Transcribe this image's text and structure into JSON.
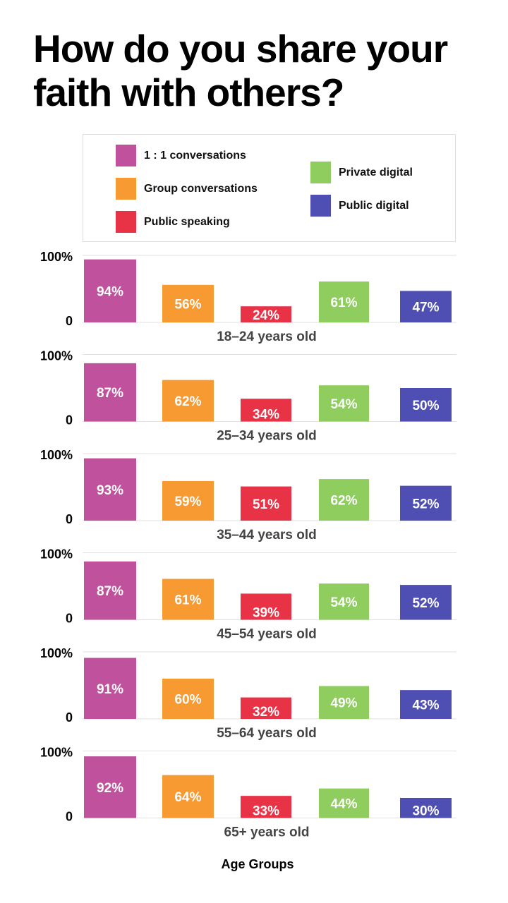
{
  "chart_data": {
    "type": "bar",
    "title": "How do you share your faith with others?",
    "xlabel": "Age Groups",
    "ylabel": "",
    "ylim": [
      0,
      100
    ],
    "y_tick_labels": [
      "0",
      "100%"
    ],
    "grid": true,
    "legend_position": "top",
    "series_names": [
      "1:1 conversations",
      "Group conversations",
      "Public speaking",
      "Private digital",
      "Public digital"
    ],
    "series_colors": [
      "#c0519c",
      "#f79a31",
      "#e83347",
      "#8fcd5f",
      "#4f4fb3"
    ],
    "panels": [
      {
        "group": "18–24 years old",
        "values": [
          94,
          56,
          24,
          61,
          47
        ],
        "labels": [
          "94%",
          "56%",
          "24%",
          "61%",
          "47%"
        ]
      },
      {
        "group": "25–34 years old",
        "values": [
          87,
          62,
          34,
          54,
          50
        ],
        "labels": [
          "87%",
          "62%",
          "34%",
          "54%",
          "50%"
        ]
      },
      {
        "group": "35–44 years old",
        "values": [
          93,
          59,
          51,
          62,
          52
        ],
        "labels": [
          "93%",
          "59%",
          "51%",
          "62%",
          "52%"
        ]
      },
      {
        "group": "45–54 years old",
        "values": [
          87,
          61,
          39,
          54,
          52
        ],
        "labels": [
          "87%",
          "61%",
          "39%",
          "54%",
          "52%"
        ]
      },
      {
        "group": "55–64 years old",
        "values": [
          91,
          60,
          32,
          49,
          43
        ],
        "labels": [
          "91%",
          "60%",
          "32%",
          "49%",
          "43%"
        ]
      },
      {
        "group": "65+ years old",
        "values": [
          92,
          64,
          33,
          44,
          30
        ],
        "labels": [
          "92%",
          "64%",
          "33%",
          "44%",
          "30%"
        ]
      }
    ]
  },
  "legend": {
    "items": [
      {
        "label": "1 : 1 conversations",
        "color": "#c0519c"
      },
      {
        "label": "Group conversations",
        "color": "#f79a31"
      },
      {
        "label": "Public speaking",
        "color": "#e83347"
      },
      {
        "label": "Private digital",
        "color": "#8fcd5f"
      },
      {
        "label": "Public digital",
        "color": "#4f4fb3"
      }
    ]
  }
}
